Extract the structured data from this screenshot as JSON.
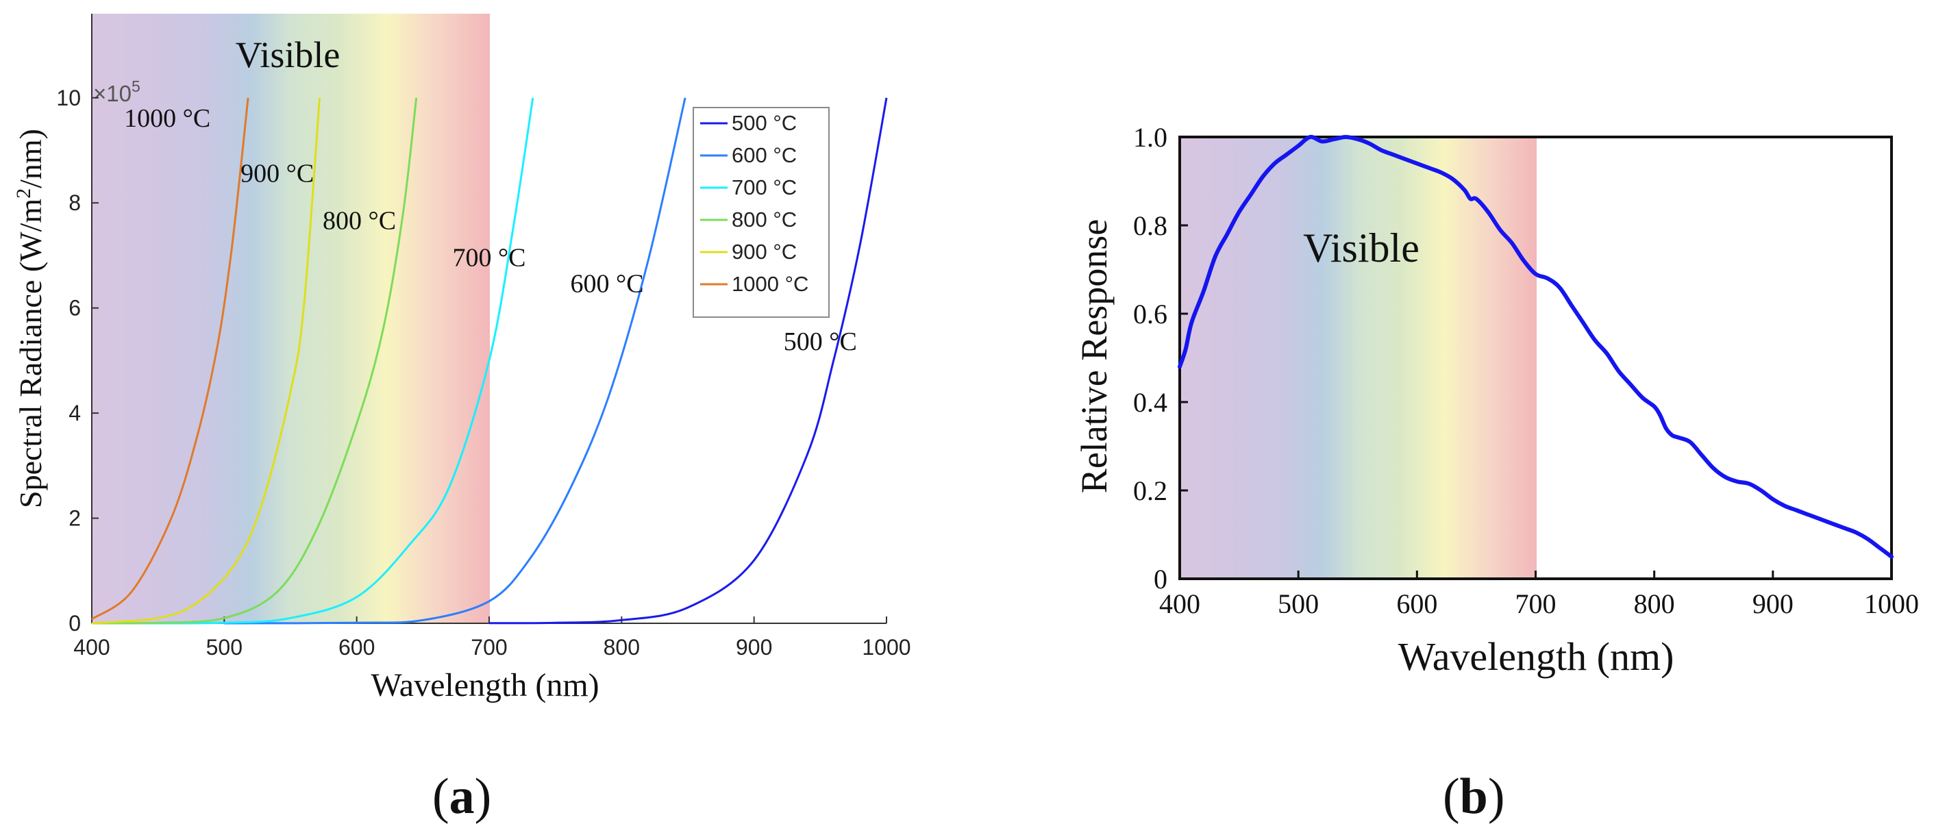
{
  "chart_data": [
    {
      "type": "line",
      "panel_label": "a",
      "title": "",
      "xlabel": "Wavelength (nm)",
      "ylabel_parts": [
        "Spectral Radiance (W/m",
        "2",
        "/nm)"
      ],
      "ylabel": "Spectral Radiance (W/m²/nm)",
      "y_multiplier_parts": [
        "×10",
        "5"
      ],
      "xlim": [
        400,
        1000
      ],
      "ylim": [
        0,
        11.6
      ],
      "xticks": [
        "400",
        "500",
        "600",
        "700",
        "800",
        "900",
        "1000"
      ],
      "yticks": [
        "0",
        "2",
        "4",
        "6",
        "8",
        "10"
      ],
      "visible_band": {
        "label": "Visible",
        "range": [
          400,
          700
        ]
      },
      "legend_position": "top-right",
      "series": [
        {
          "name": "500 °C",
          "label": "500 °C",
          "temp_c": 500,
          "color": "#1a1aee"
        },
        {
          "name": "600 °C",
          "label": "600 °C",
          "temp_c": 600,
          "color": "#2b7fff"
        },
        {
          "name": "700 °C",
          "label": "700 °C",
          "temp_c": 700,
          "color": "#19f0ff"
        },
        {
          "name": "800 °C",
          "label": "800 °C",
          "temp_c": 800,
          "color": "#7ddc5a"
        },
        {
          "name": "900 °C",
          "label": "900 °C",
          "temp_c": 900,
          "color": "#dede1e"
        },
        {
          "name": "1000 °C",
          "label": "1000 °C",
          "temp_c": 1000,
          "color": "#e07a2a"
        }
      ],
      "curve_points": {
        "500 °C": [
          [
            700,
            0.003
          ],
          [
            750,
            0.01
          ],
          [
            800,
            0.06
          ],
          [
            850,
            0.3
          ],
          [
            900,
            1.2
          ],
          [
            940,
            3.2
          ],
          [
            960,
            5.0
          ],
          [
            980,
            7.2
          ],
          [
            1000,
            10.0
          ]
        ],
        "600 °C": [
          [
            500,
            0.0
          ],
          [
            600,
            0.01
          ],
          [
            650,
            0.06
          ],
          [
            700,
            0.42
          ],
          [
            730,
            1.2
          ],
          [
            760,
            2.5
          ],
          [
            790,
            4.3
          ],
          [
            820,
            6.9
          ],
          [
            848,
            10.0
          ]
        ],
        "700 °C": [
          [
            400,
            0.0
          ],
          [
            500,
            0.01
          ],
          [
            550,
            0.1
          ],
          [
            600,
            0.5
          ],
          [
            640,
            1.5
          ],
          [
            670,
            2.6
          ],
          [
            700,
            5.0
          ],
          [
            718,
            7.5
          ],
          [
            733,
            10.0
          ]
        ],
        "800 °C": [
          [
            400,
            0.0
          ],
          [
            450,
            0.01
          ],
          [
            500,
            0.1
          ],
          [
            540,
            0.6
          ],
          [
            570,
            1.8
          ],
          [
            600,
            3.8
          ],
          [
            620,
            5.6
          ],
          [
            635,
            7.8
          ],
          [
            645,
            10.0
          ]
        ],
        "900 °C": [
          [
            400,
            0.0
          ],
          [
            450,
            0.1
          ],
          [
            480,
            0.4
          ],
          [
            510,
            1.2
          ],
          [
            530,
            2.4
          ],
          [
            550,
            4.4
          ],
          [
            560,
            6.0
          ],
          [
            572,
            10.0
          ]
        ],
        "1000 °C": [
          [
            400,
            0.08
          ],
          [
            430,
            0.6
          ],
          [
            460,
            2.0
          ],
          [
            480,
            3.6
          ],
          [
            495,
            5.3
          ],
          [
            505,
            7.0
          ],
          [
            513,
            8.8
          ],
          [
            518,
            10.0
          ]
        ]
      },
      "curve_labels": [
        {
          "text": "1000 °C",
          "x": 457,
          "y": 9.45
        },
        {
          "text": "900 °C",
          "x": 540,
          "y": 8.4
        },
        {
          "text": "800 °C",
          "x": 602,
          "y": 7.5
        },
        {
          "text": "700 °C",
          "x": 700,
          "y": 6.8
        },
        {
          "text": "600 °C",
          "x": 789,
          "y": 6.3
        },
        {
          "text": "500 °C",
          "x": 950,
          "y": 5.2
        }
      ]
    },
    {
      "type": "line",
      "panel_label": "b",
      "title": "",
      "xlabel": "Wavelength (nm)",
      "ylabel": "Relative Response",
      "xlim": [
        400,
        1000
      ],
      "ylim": [
        0,
        1.0
      ],
      "xticks": [
        "400",
        "500",
        "600",
        "700",
        "800",
        "900",
        "1000"
      ],
      "yticks": [
        "0",
        "0.2",
        "0.4",
        "0.6",
        "0.8",
        "1.0"
      ],
      "visible_band": {
        "label": "Visible",
        "range": [
          400,
          700
        ]
      },
      "series": [
        {
          "name": "Relative Response",
          "color": "#1515f0",
          "x": [
            400,
            405,
            410,
            420,
            430,
            440,
            450,
            460,
            470,
            480,
            490,
            500,
            510,
            520,
            530,
            540,
            550,
            560,
            570,
            580,
            590,
            600,
            610,
            620,
            630,
            640,
            645,
            650,
            660,
            670,
            680,
            690,
            700,
            710,
            720,
            730,
            740,
            750,
            760,
            770,
            780,
            790,
            800,
            805,
            810,
            815,
            820,
            830,
            840,
            850,
            860,
            870,
            880,
            890,
            900,
            910,
            920,
            930,
            940,
            950,
            960,
            970,
            980,
            990,
            1000
          ],
          "y": [
            0.48,
            0.52,
            0.58,
            0.65,
            0.73,
            0.78,
            0.83,
            0.87,
            0.91,
            0.94,
            0.96,
            0.98,
            1.0,
            0.99,
            0.995,
            1.0,
            0.995,
            0.985,
            0.97,
            0.96,
            0.95,
            0.94,
            0.93,
            0.92,
            0.905,
            0.88,
            0.86,
            0.86,
            0.83,
            0.79,
            0.76,
            0.72,
            0.69,
            0.68,
            0.66,
            0.62,
            0.58,
            0.54,
            0.51,
            0.47,
            0.44,
            0.41,
            0.39,
            0.37,
            0.34,
            0.325,
            0.32,
            0.31,
            0.28,
            0.25,
            0.23,
            0.22,
            0.215,
            0.2,
            0.18,
            0.165,
            0.155,
            0.145,
            0.135,
            0.125,
            0.115,
            0.105,
            0.09,
            0.07,
            0.05
          ]
        }
      ]
    }
  ],
  "captions": {
    "a": {
      "open": "(",
      "letter": "a",
      "close": ")"
    },
    "b": {
      "open": "(",
      "letter": "b",
      "close": ")"
    }
  }
}
